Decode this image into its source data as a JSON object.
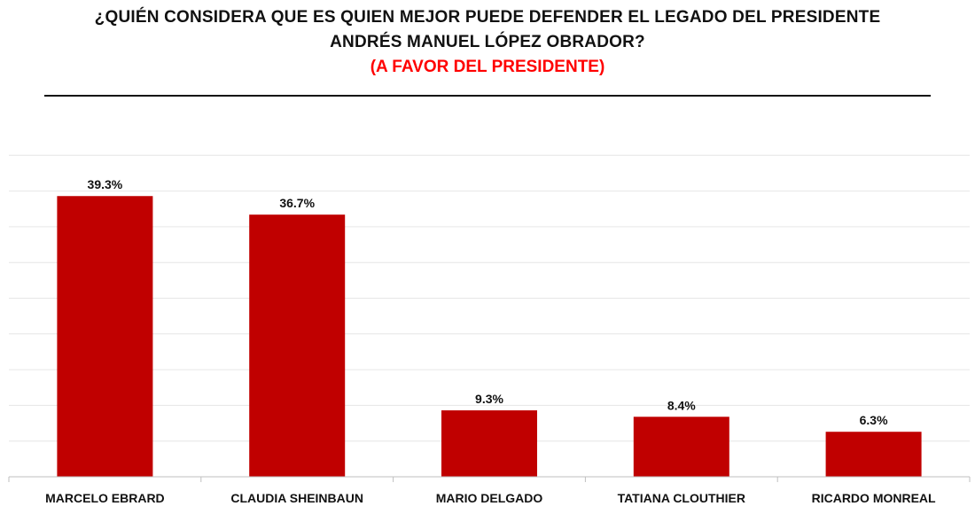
{
  "header": {
    "title_line1": "¿QUIÉN CONSIDERA QUE ES QUIEN MEJOR PUEDE DEFENDER EL LEGADO DEL PRESIDENTE",
    "title_line2": "ANDRÉS MANUEL LÓPEZ OBRADOR?",
    "subtitle": "(A FAVOR DEL PRESIDENTE)"
  },
  "colors": {
    "bar": "#C00000",
    "subtitle": "#FF0000",
    "grid": "#E6E6E6",
    "axis": "#BFBFBF",
    "text": "#111111"
  },
  "chart_data": {
    "type": "bar",
    "title": "¿QUIÉN CONSIDERA QUE ES QUIEN MEJOR PUEDE DEFENDER EL LEGADO DEL PRESIDENTE ANDRÉS MANUEL LÓPEZ OBRADOR?",
    "subtitle": "(A FAVOR DEL PRESIDENTE)",
    "categories": [
      "MARCELO EBRARD",
      "CLAUDIA SHEINBAUN",
      "MARIO DELGADO",
      "TATIANA CLOUTHIER",
      "RICARDO MONREAL"
    ],
    "values": [
      39.3,
      36.7,
      9.3,
      8.4,
      6.3
    ],
    "data_labels": [
      "39.3%",
      "36.7%",
      "9.3%",
      "8.4%",
      "6.3%"
    ],
    "xlabel": "",
    "ylabel": "",
    "ylim": [
      0,
      45
    ],
    "grid": true,
    "gridline_step": 5,
    "legend": "none"
  }
}
